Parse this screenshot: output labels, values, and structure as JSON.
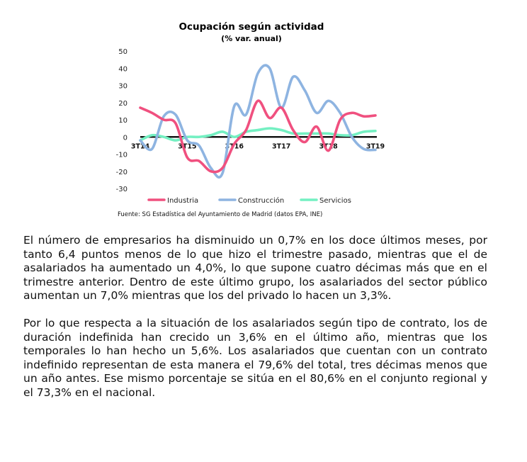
{
  "chart_data": {
    "type": "line",
    "title": "Ocupación según actividad",
    "subtitle": "(% var. anual)",
    "x": [
      "3T14",
      "4T14",
      "1T15",
      "2T15",
      "3T15",
      "4T15",
      "1T16",
      "2T16",
      "3T16",
      "4T16",
      "1T17",
      "2T17",
      "3T17",
      "4T17",
      "1T18",
      "2T18",
      "3T18",
      "4T18",
      "1T19",
      "2T19",
      "3T19"
    ],
    "xtick_labels": [
      "3T14",
      "3T15",
      "3T16",
      "3T17",
      "3T18",
      "3T19"
    ],
    "ylim": [
      -30,
      50
    ],
    "yticks": [
      -30,
      -20,
      -10,
      0,
      10,
      20,
      30,
      40,
      50
    ],
    "grid": false,
    "legend_position": "bottom",
    "series": [
      {
        "name": "Industria",
        "color": "#f0507f",
        "values": [
          17,
          14,
          10,
          8,
          -12,
          -14,
          -20,
          -18,
          -4,
          4,
          21,
          11,
          17,
          4,
          -3,
          6,
          -8,
          10,
          14,
          12,
          12.5
        ]
      },
      {
        "name": "Construcción",
        "color": "#8eb4e1",
        "values": [
          -2,
          -7,
          12,
          13,
          -2,
          -5,
          -18,
          -21,
          18,
          13,
          37,
          40,
          17,
          35,
          27,
          14,
          21,
          14,
          0,
          -7,
          -7.5
        ]
      },
      {
        "name": "Servicios",
        "color": "#74f0c2",
        "values": [
          -2,
          1,
          0,
          -2,
          0,
          0,
          1,
          3,
          0,
          3,
          4,
          5,
          4,
          2,
          2,
          2,
          2,
          1,
          1,
          3,
          3.5
        ]
      }
    ],
    "source": "Fuente: SG Estadística del Ayuntamiento de Madrid (datos EPA, INE)"
  },
  "body_text": {
    "paragraph_1": "El número de empresarios ha disminuido un 0,7% en los doce últimos meses, por tanto 6,4 puntos menos de lo que hizo el trimestre pasado, mientras que el de asalariados ha aumentado un 4,0%, lo que supone cuatro décimas más que en el trimestre anterior. Dentro de este último grupo, los asalariados del sector público aumentan un 7,0% mientras que los del privado lo hacen un 3,3%.",
    "paragraph_2": "Por lo que respecta a la situación de los asalariados según tipo de contrato, los de duración indefinida han crecido un 3,6% en el último año, mientras que los temporales lo han hecho un 5,6%. Los asalariados que cuentan con un contrato indefinido representan de esta manera el 79,6% del total, tres décimas menos que un año antes. Ese mismo porcentaje se sitúa en el 80,6% en el conjunto regional y el 73,3% en el nacional."
  }
}
